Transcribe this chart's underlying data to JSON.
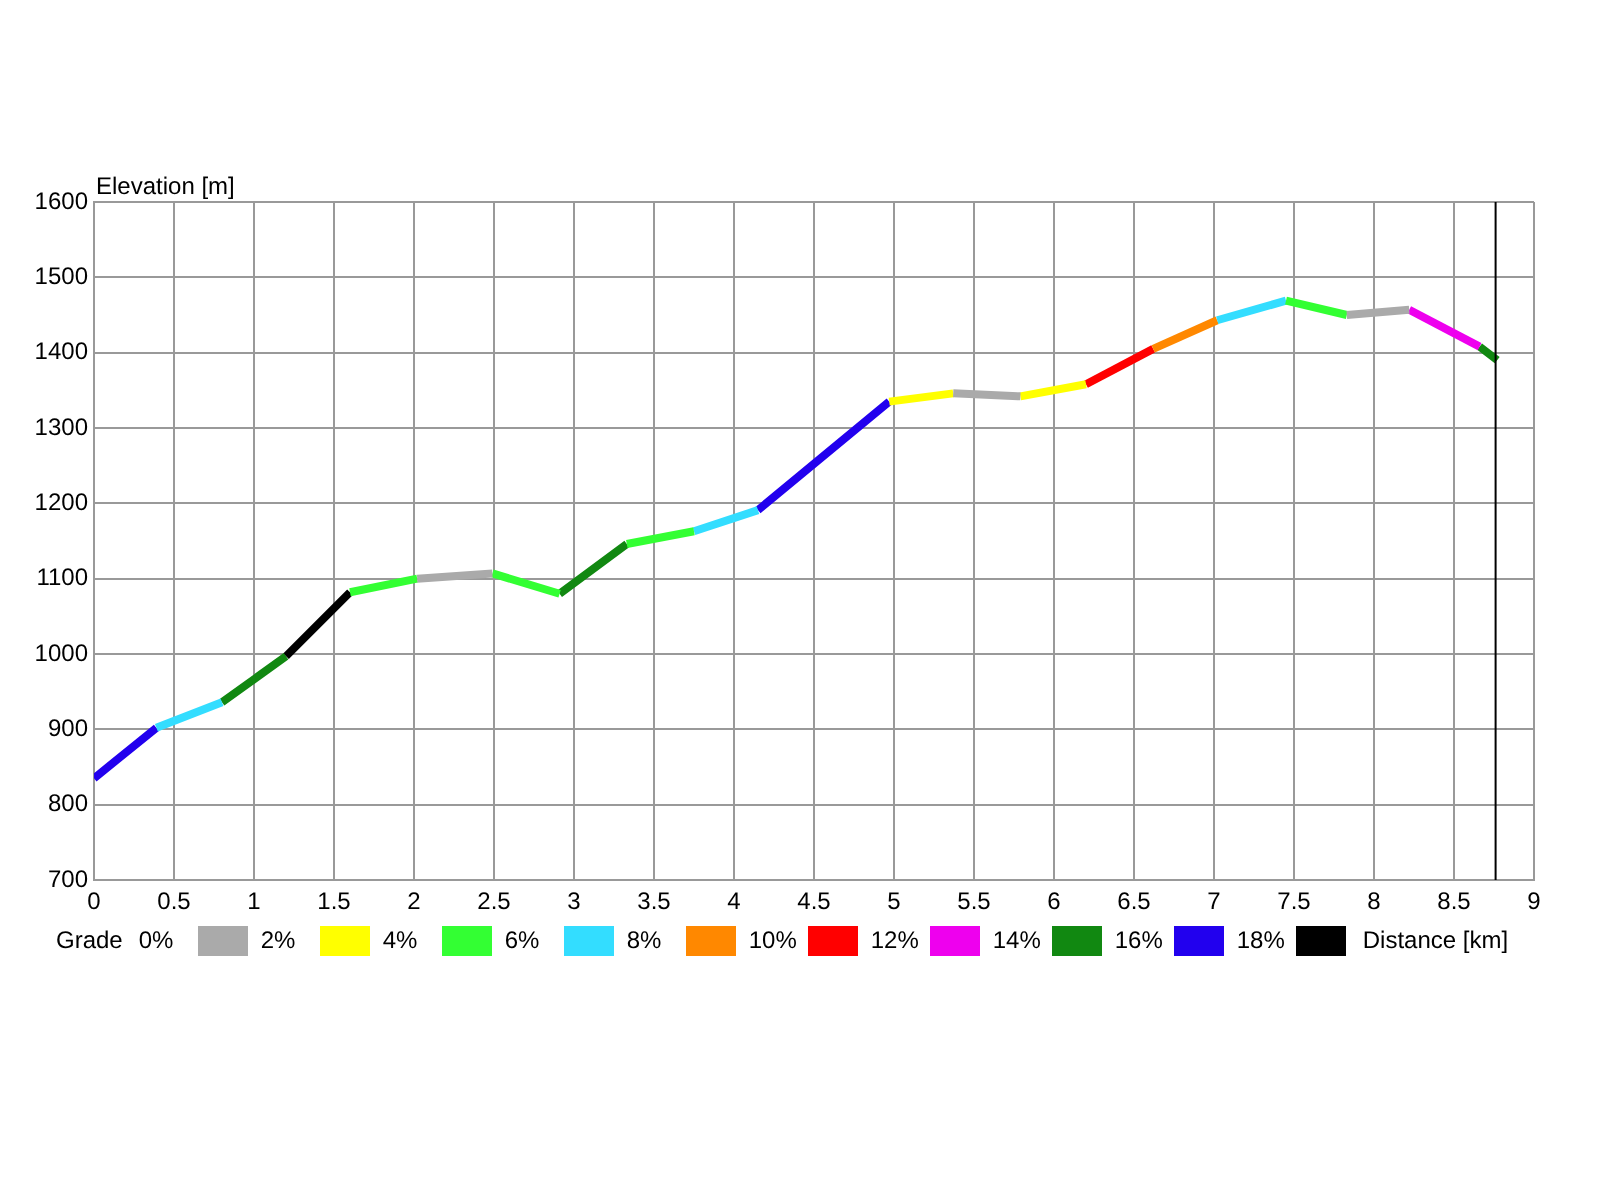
{
  "chart_data": {
    "type": "line",
    "xlabel": "Distance [km]",
    "ylabel": "Elevation [m]",
    "legend_title": "Grade",
    "series": [
      {
        "name": "0%",
        "color": "#aaaaaa",
        "x": [
          2.02,
          2.49,
          3.5,
          5.37,
          5.79,
          6.8,
          7.83,
          8.22
        ],
        "values": [
          1100,
          1107,
          null,
          1346,
          1342,
          null,
          1450,
          1457
        ]
      },
      {
        "name": "2%",
        "color": "#ffff00",
        "x": [
          4.97,
          5.37,
          5.58,
          5.79,
          6.2
        ],
        "values": [
          1335,
          1346,
          null,
          1342,
          1358
        ]
      },
      {
        "name": "4%",
        "color": "#33ff33",
        "x": [
          1.6,
          2.02,
          2.25,
          2.49,
          2.91,
          3.1,
          3.33,
          3.75,
          5.6,
          7.45,
          7.83
        ],
        "values": [
          1082,
          1100,
          null,
          1107,
          1080,
          null,
          1146,
          1163,
          null,
          1469,
          1450
        ]
      },
      {
        "name": "6%",
        "color": "#33ddff",
        "x": [
          0.39,
          0.8,
          2.3,
          3.75,
          4.15,
          5.6,
          7.02,
          7.45
        ],
        "values": [
          902,
          936,
          null,
          1163,
          1191,
          null,
          1443,
          1469
        ]
      },
      {
        "name": "8%",
        "color": "#ff8800",
        "x": [
          6.62,
          7.02
        ],
        "values": [
          1405,
          1443
        ]
      },
      {
        "name": "10%",
        "color": "#ff0000",
        "x": [
          6.2,
          6.62
        ],
        "values": [
          1358,
          1405
        ]
      },
      {
        "name": "12%",
        "color": "#ee00ee",
        "x": [
          8.22,
          8.66
        ],
        "values": [
          1457,
          1408
        ]
      },
      {
        "name": "14%",
        "color": "#118811",
        "x": [
          0.8,
          1.2,
          2.0,
          2.91,
          3.33,
          6.0,
          8.66,
          8.77
        ],
        "values": [
          936,
          997,
          null,
          1080,
          1146,
          null,
          1408,
          1390
        ]
      },
      {
        "name": "16%",
        "color": "#2200ee",
        "x": [
          0,
          0.39,
          2.3,
          4.15,
          4.97
        ],
        "values": [
          835,
          902,
          null,
          1191,
          1335
        ]
      },
      {
        "name": "18%",
        "color": "#000000",
        "x": [
          1.2,
          1.6
        ],
        "values": [
          997,
          1082
        ]
      }
    ],
    "xlim": [
      0,
      9
    ],
    "xticks": [
      0,
      0.5,
      1,
      1.5,
      2,
      2.5,
      3,
      3.5,
      4,
      4.5,
      5,
      5.5,
      6,
      6.5,
      7,
      7.5,
      8,
      8.5,
      9
    ],
    "ylim": [
      700,
      1600
    ],
    "yticks": [
      700,
      800,
      900,
      1000,
      1100,
      1200,
      1300,
      1400,
      1500,
      1600
    ],
    "ref_lines": [
      {
        "axis": "x",
        "value": 8.76,
        "color": "#000000"
      }
    ],
    "grid": true,
    "legend": "bottom",
    "marker": "none",
    "line_style": "solid"
  }
}
